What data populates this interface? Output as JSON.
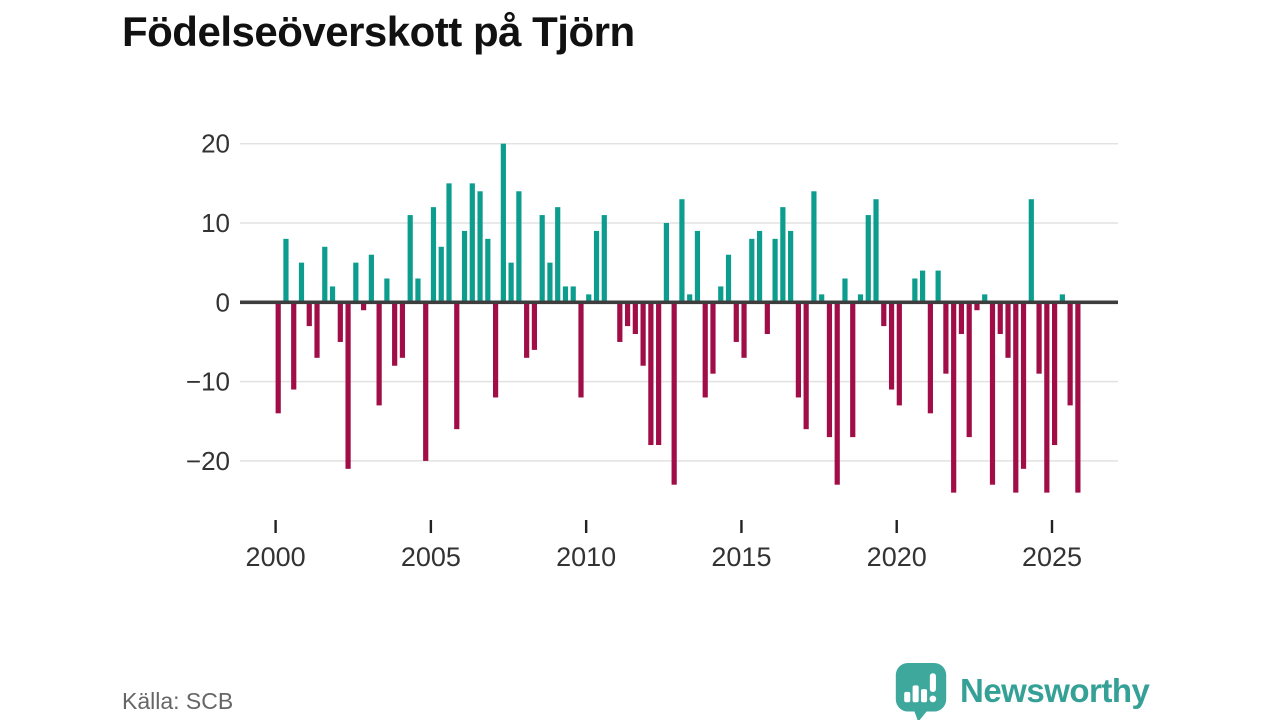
{
  "title": "Födelseöverskott på Tjörn",
  "source": "Källa: SCB",
  "logo": {
    "text": "Newsworthy"
  },
  "colors": {
    "positive": "#0d9d8e",
    "negative": "#a00d47",
    "grid": "#e2e2e2",
    "zero_line": "#3d3d3d",
    "axis_text": "#333333",
    "source_text": "#666666",
    "logo_teal": "#3fa89d",
    "logo_text": "#35a096"
  },
  "chart_data": {
    "type": "bar",
    "title": "Födelseöverskott på Tjörn",
    "x_unit": "quarter",
    "periods_per_year": 4,
    "start_year": 2000,
    "start_period": "2000-Q1",
    "end_period": "2025-Q4",
    "x_ticks": [
      2000,
      2005,
      2010,
      2015,
      2020,
      2025
    ],
    "x_tick_labels": [
      "2000",
      "2005",
      "2010",
      "2015",
      "2020",
      "2025"
    ],
    "y_ticks": [
      20,
      10,
      0,
      -10,
      -20
    ],
    "y_tick_labels": [
      "20",
      "10",
      "0",
      "−10",
      "−20"
    ],
    "ylim": [
      -26,
      22
    ],
    "grid": "horizontal",
    "legend": "none",
    "series": [
      {
        "name": "Födelseöverskott",
        "values": [
          -14,
          8,
          -11,
          5,
          -3,
          -7,
          7,
          2,
          -5,
          -21,
          5,
          -1,
          6,
          -13,
          3,
          -8,
          -7,
          11,
          3,
          -20,
          12,
          7,
          15,
          -16,
          9,
          15,
          14,
          8,
          -12,
          20,
          5,
          14,
          -7,
          -6,
          11,
          5,
          12,
          2,
          2,
          -12,
          1,
          9,
          11,
          0,
          -5,
          -3,
          -4,
          -8,
          -18,
          -18,
          10,
          -23,
          13,
          1,
          9,
          -12,
          -9,
          2,
          6,
          -5,
          -7,
          8,
          9,
          -4,
          8,
          12,
          9,
          -12,
          -16,
          14,
          1,
          -17,
          -23,
          3,
          -17,
          1,
          11,
          13,
          -3,
          -11,
          -13,
          0,
          3,
          4,
          -14,
          4,
          -9,
          -24,
          -4,
          -17,
          -1,
          1,
          -23,
          -4,
          -7,
          -24,
          -21,
          13,
          -9,
          -24,
          -18,
          1,
          -13,
          -24
        ]
      }
    ]
  }
}
